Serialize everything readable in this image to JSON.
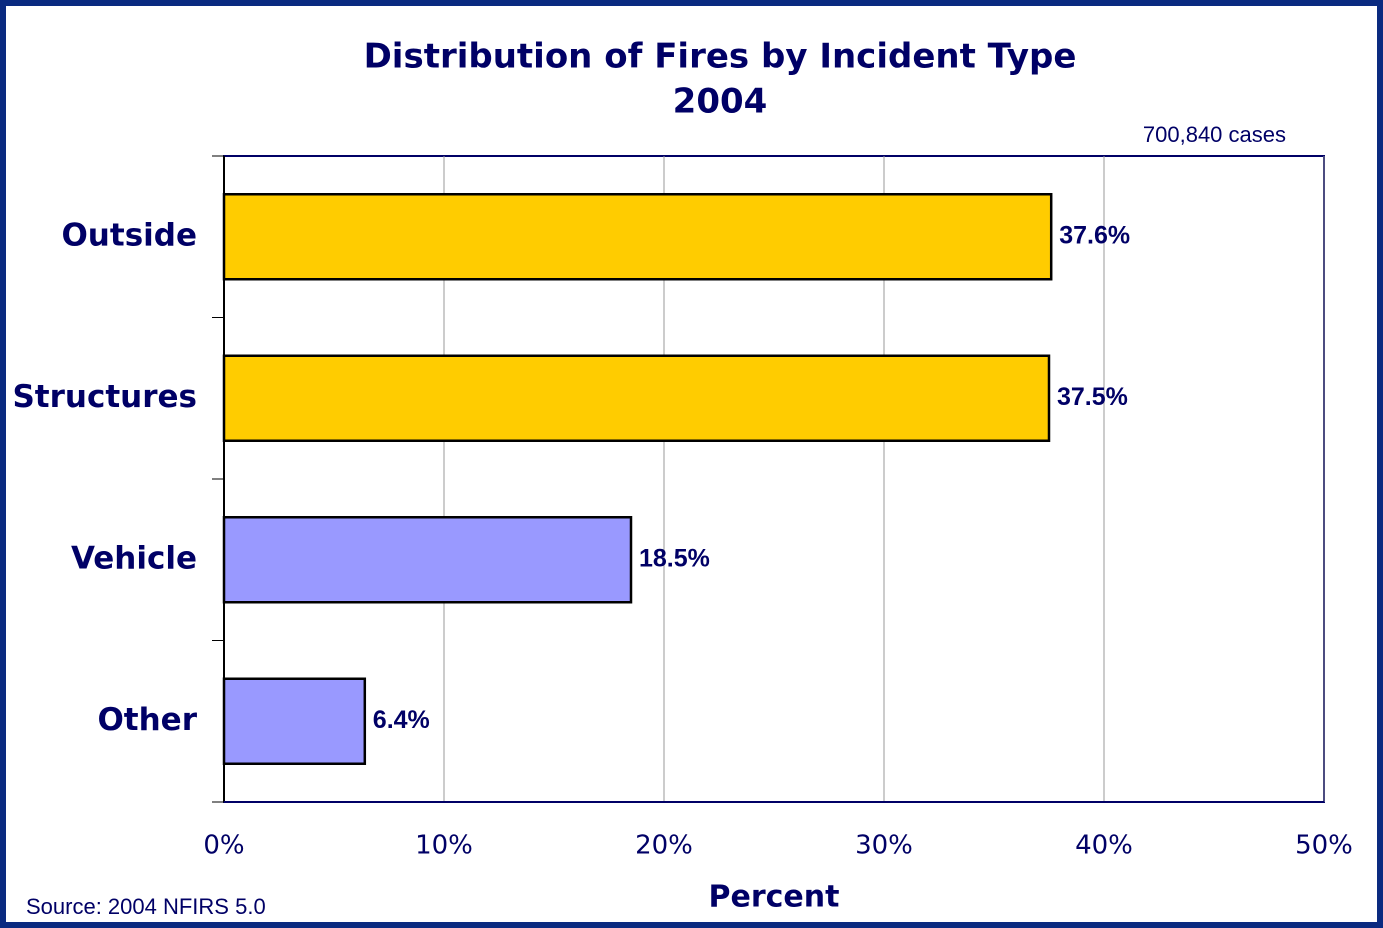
{
  "chart_data": {
    "type": "hbar",
    "title": "Distribution of Fires by Incident Type",
    "subtitle": "2004",
    "annotation": "700,840 cases",
    "source": "Source: 2004 NFIRS 5.0",
    "x_label": "Percent",
    "categories": [
      "Outside",
      "Structures",
      "Vehicle",
      "Other"
    ],
    "values": [
      37.6,
      37.5,
      18.5,
      6.4
    ],
    "value_labels": [
      "37.6%",
      "37.5%",
      "18.5%",
      "6.4%"
    ],
    "colors": [
      "#ffcc00",
      "#ffcc00",
      "#9999ff",
      "#9999ff"
    ],
    "xlim": [
      0,
      50
    ],
    "xticks": [
      {
        "value": 0,
        "label": "0%"
      },
      {
        "value": 10,
        "label": "10%"
      },
      {
        "value": 20,
        "label": "20%"
      },
      {
        "value": 30,
        "label": "30%"
      },
      {
        "value": 40,
        "label": "40%"
      },
      {
        "value": 50,
        "label": "50%"
      }
    ],
    "grid": true
  }
}
